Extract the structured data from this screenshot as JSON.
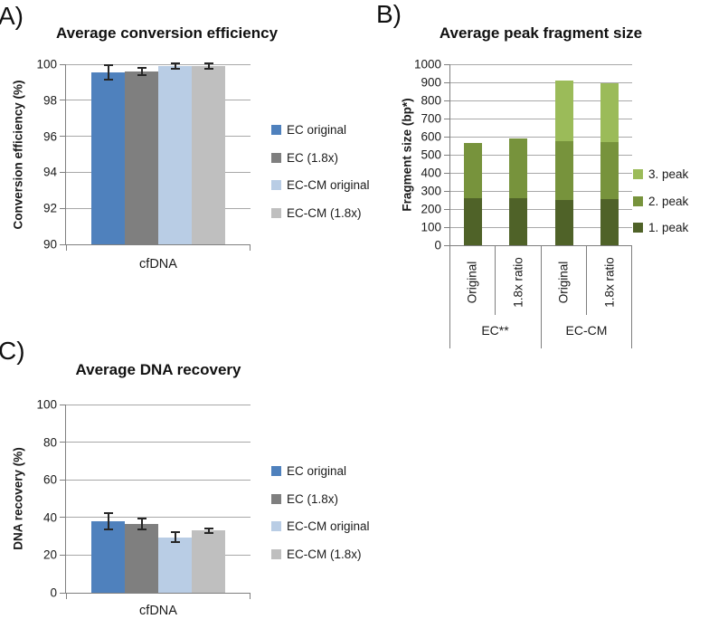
{
  "figure": {
    "background": "#ffffff"
  },
  "colors": {
    "axis": "#7f7f7f",
    "grid": "#a8a8a8",
    "error_bar": "#262626",
    "text": "#1a1a1a"
  },
  "chart_data": [
    {
      "id": "a",
      "panel_label": "A)",
      "type": "bar",
      "title": "Average conversion efficiency",
      "ylabel": "Conversion efficiency (%)",
      "xlabel": "",
      "categories": [
        "cfDNA"
      ],
      "ylim": [
        90,
        100
      ],
      "ytick_step": 2,
      "grid": true,
      "legend_position": "right",
      "series": [
        {
          "name": "EC original",
          "color": "#4f81bd",
          "value": 99.55,
          "error": 0.4
        },
        {
          "name": "EC (1.8x)",
          "color": "#7f7f7f",
          "value": 99.6,
          "error": 0.2
        },
        {
          "name": "EC-CM original",
          "color": "#b9cde5",
          "value": 99.9,
          "error": 0.13
        },
        {
          "name": "EC-CM (1.8x)",
          "color": "#bfbfbf",
          "value": 99.9,
          "error": 0.15
        }
      ],
      "legend": [
        {
          "label": "EC original",
          "color": "#4f81bd"
        },
        {
          "label": "EC (1.8x)",
          "color": "#7f7f7f"
        },
        {
          "label": "EC-CM original",
          "color": "#b9cde5"
        },
        {
          "label": "EC-CM (1.8x)",
          "color": "#bfbfbf"
        }
      ]
    },
    {
      "id": "b",
      "panel_label": "B)",
      "type": "stacked-bar",
      "title": "Average peak fragment size",
      "ylabel": "Fragment size (bp*)",
      "xlabel": "",
      "categories": [
        "Original",
        "1.8x ratio",
        "Original",
        "1.8x ratio"
      ],
      "groups": [
        {
          "label": "EC**",
          "span": [
            0,
            1
          ]
        },
        {
          "label": "EC-CM",
          "span": [
            2,
            3
          ]
        }
      ],
      "ylim": [
        0,
        1000
      ],
      "ytick_step": 100,
      "grid": true,
      "legend_position": "right",
      "series": [
        {
          "name": "1. peak",
          "color": "#4f6228",
          "values": [
            260,
            260,
            250,
            255
          ]
        },
        {
          "name": "2. peak",
          "color": "#77933c",
          "values": [
            305,
            330,
            325,
            315
          ]
        },
        {
          "name": "3. peak",
          "color": "#9bbb59",
          "values": [
            0,
            0,
            335,
            325
          ]
        }
      ],
      "stack_totals": [
        565,
        590,
        910,
        895
      ],
      "legend": [
        {
          "label": "3. peak",
          "color": "#9bbb59"
        },
        {
          "label": "2. peak",
          "color": "#77933c"
        },
        {
          "label": "1. peak",
          "color": "#4f6228"
        }
      ]
    },
    {
      "id": "c",
      "panel_label": "C)",
      "type": "bar",
      "title": "Average DNA recovery",
      "ylabel": "DNA recovery (%)",
      "xlabel": "",
      "categories": [
        "cfDNA"
      ],
      "ylim": [
        0,
        100
      ],
      "ytick_step": 20,
      "grid": true,
      "legend_position": "right",
      "series": [
        {
          "name": "EC original",
          "color": "#4f81bd",
          "value": 38,
          "error": 4.5
        },
        {
          "name": "EC (1.8x)",
          "color": "#7f7f7f",
          "value": 36.5,
          "error": 3
        },
        {
          "name": "EC-CM original",
          "color": "#b9cde5",
          "value": 29.5,
          "error": 2.5
        },
        {
          "name": "EC-CM (1.8x)",
          "color": "#bfbfbf",
          "value": 33,
          "error": 1.3
        }
      ],
      "legend": [
        {
          "label": "EC original",
          "color": "#4f81bd"
        },
        {
          "label": "EC (1.8x)",
          "color": "#7f7f7f"
        },
        {
          "label": "EC-CM original",
          "color": "#b9cde5"
        },
        {
          "label": "EC-CM (1.8x)",
          "color": "#bfbfbf"
        }
      ]
    }
  ]
}
